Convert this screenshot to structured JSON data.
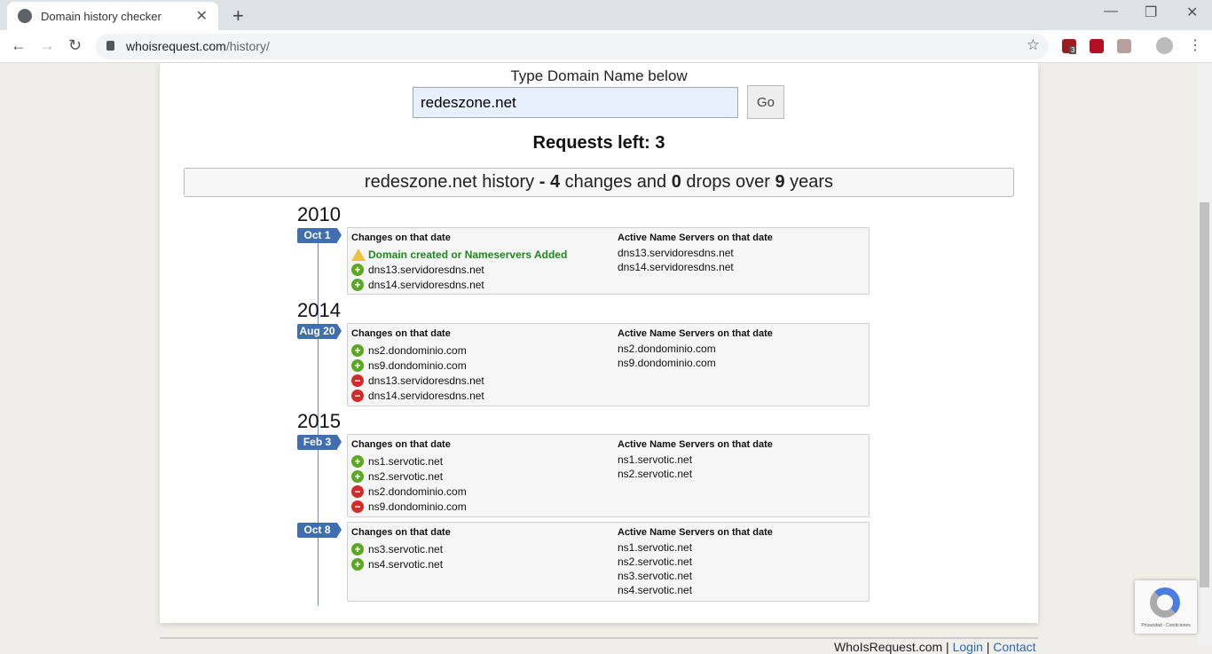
{
  "browser": {
    "tab_title": "Domain history checker",
    "url_host": "whoisrequest.com",
    "url_path": "/history/",
    "ext_badge": "3"
  },
  "form": {
    "label": "Type Domain Name below",
    "domain_value": "redeszone.net",
    "go_label": "Go"
  },
  "requests_left": {
    "label": "Requests left:",
    "value": "3"
  },
  "summary": {
    "domain": "redeszone.net",
    "t1": " history ",
    "dash": "-",
    "changes": "4",
    "t2": " changes and ",
    "drops": "0",
    "t3": " drops over ",
    "years": "9",
    "t4": " years"
  },
  "headers": {
    "changes": "Changes on that date",
    "active": "Active Name Servers on that date"
  },
  "entries": [
    {
      "year": "2010",
      "date": "Oct 1",
      "changes": [
        {
          "type": "created",
          "text": "Domain created or Nameservers Added"
        },
        {
          "type": "add",
          "text": "dns13.servidoresdns.net"
        },
        {
          "type": "add",
          "text": "dns14.servidoresdns.net"
        }
      ],
      "active": [
        "dns13.servidoresdns.net",
        "dns14.servidoresdns.net"
      ]
    },
    {
      "year": "2014",
      "date": "Aug 20",
      "changes": [
        {
          "type": "add",
          "text": "ns2.dondominio.com"
        },
        {
          "type": "add",
          "text": "ns9.dondominio.com"
        },
        {
          "type": "remove",
          "text": "dns13.servidoresdns.net"
        },
        {
          "type": "remove",
          "text": "dns14.servidoresdns.net"
        }
      ],
      "active": [
        "ns2.dondominio.com",
        "ns9.dondominio.com"
      ]
    },
    {
      "year": "2015",
      "date": "Feb 3",
      "changes": [
        {
          "type": "add",
          "text": "ns1.servotic.net"
        },
        {
          "type": "add",
          "text": "ns2.servotic.net"
        },
        {
          "type": "remove",
          "text": "ns2.dondominio.com"
        },
        {
          "type": "remove",
          "text": "ns9.dondominio.com"
        }
      ],
      "active": [
        "ns1.servotic.net",
        "ns2.servotic.net"
      ]
    },
    {
      "year": "",
      "date": "Oct 8",
      "changes": [
        {
          "type": "add",
          "text": "ns3.servotic.net"
        },
        {
          "type": "add",
          "text": "ns4.servotic.net"
        }
      ],
      "active": [
        "ns1.servotic.net",
        "ns2.servotic.net",
        "ns3.servotic.net",
        "ns4.servotic.net"
      ]
    }
  ],
  "footer": {
    "site": "WhoIsRequest.com",
    "login": "Login",
    "contact": "Contact Us"
  },
  "recaptcha": {
    "text": "Privacidad - Condiciones"
  },
  "colors": {
    "tag": "#3f6fb0",
    "add": "#5aa820",
    "remove": "#d42a2a",
    "created": "#1a8a1a"
  }
}
